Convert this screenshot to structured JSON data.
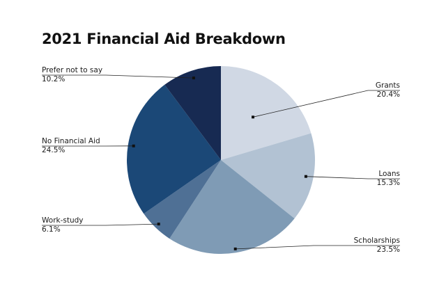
{
  "chart_data": {
    "type": "pie",
    "title": "2021 Financial Aid Breakdown",
    "slices": [
      {
        "label": "Grants",
        "pct_label": "20.4%",
        "value": 20.4,
        "color": "#d0d8e4"
      },
      {
        "label": "Loans",
        "pct_label": "15.3%",
        "value": 15.3,
        "color": "#b2c2d3"
      },
      {
        "label": "Scholarships",
        "pct_label": "23.5%",
        "value": 23.5,
        "color": "#7f9bb5"
      },
      {
        "label": "Work-study",
        "pct_label": "6.1%",
        "value": 6.1,
        "color": "#4f7095"
      },
      {
        "label": "No Financial Aid",
        "pct_label": "24.5%",
        "value": 24.5,
        "color": "#1b4877"
      },
      {
        "label": "Prefer not to say",
        "pct_label": "10.2%",
        "value": 10.2,
        "color": "#172a52"
      }
    ],
    "start": "12 o'clock",
    "direction": "clockwise",
    "legend": "none (leader-line labels on left and right)"
  }
}
